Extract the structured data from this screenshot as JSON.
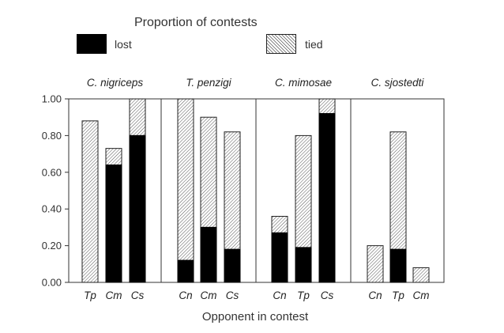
{
  "legend": {
    "title": "Proportion of contests",
    "lost_label": "lost",
    "tied_label": "tied"
  },
  "chart_data": {
    "type": "bar",
    "stacked": true,
    "xlabel": "Opponent in contest",
    "ylim": [
      0,
      1
    ],
    "yticks": [
      "0.00",
      "0.20",
      "0.40",
      "0.60",
      "0.80",
      "1.00"
    ],
    "series_names": [
      "lost",
      "tied"
    ],
    "colors": {
      "lost": "#000000",
      "tied_hatch": "#555555",
      "outline": "#222222"
    },
    "legend_position": "top",
    "panels": [
      {
        "name": "C. nigriceps",
        "categories": [
          "Tp",
          "Cm",
          "Cs"
        ],
        "lost": [
          0.0,
          0.64,
          0.8
        ],
        "tied": [
          0.88,
          0.09,
          0.2
        ]
      },
      {
        "name": "T. penzigi",
        "categories": [
          "Cn",
          "Cm",
          "Cs"
        ],
        "lost": [
          0.12,
          0.3,
          0.18
        ],
        "tied": [
          0.88,
          0.6,
          0.64
        ]
      },
      {
        "name": "C. mimosae",
        "categories": [
          "Cn",
          "Tp",
          "Cs"
        ],
        "lost": [
          0.27,
          0.19,
          0.92
        ],
        "tied": [
          0.09,
          0.61,
          0.08
        ]
      },
      {
        "name": "C. sjostedti",
        "categories": [
          "Cn",
          "Tp",
          "Cm"
        ],
        "lost": [
          0.0,
          0.18,
          0.0
        ],
        "tied": [
          0.2,
          0.64,
          0.08
        ]
      }
    ]
  }
}
